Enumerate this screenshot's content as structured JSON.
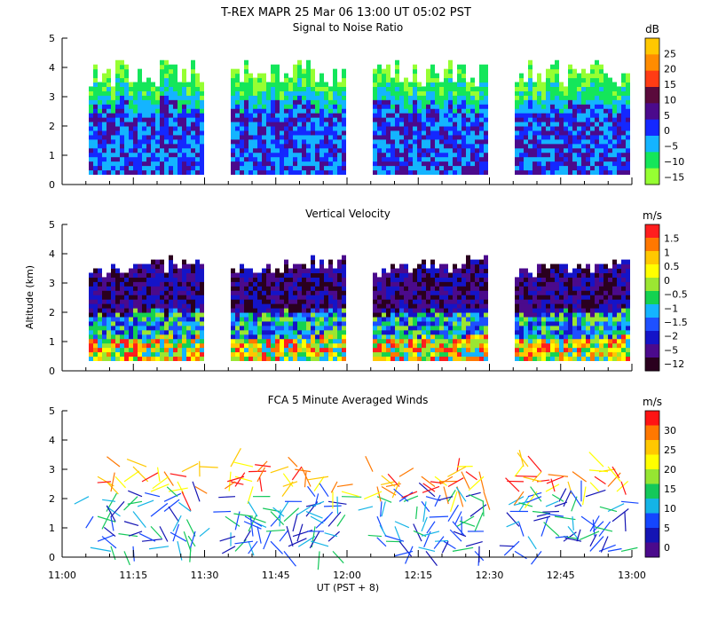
{
  "figure": {
    "title": "T-REX   MAPR 25 Mar 06   13:00 UT   05:02   PST",
    "xlabel": "UT  (PST + 8)"
  },
  "chart_data": [
    {
      "type": "heatmap",
      "title": "Signal to Noise Ratio",
      "ylabel": "",
      "ylim": [
        0,
        5
      ],
      "yticks": [
        "0",
        "1",
        "2",
        "3",
        "4",
        "5"
      ],
      "colorbar": {
        "unit": "dB",
        "labels": [
          "25",
          "20",
          "15",
          "10",
          "5",
          "0",
          "−5",
          "−10",
          "−15"
        ],
        "colors": [
          "#ffc800",
          "#ff8c00",
          "#ff3c14",
          "#5a0a3c",
          "#4b0a8c",
          "#1428ff",
          "#14b4ff",
          "#14e65a",
          "#96ff32"
        ]
      }
    },
    {
      "type": "heatmap",
      "title": "Vertical Velocity",
      "ylabel": "Altitude (km)",
      "ylim": [
        0,
        5
      ],
      "yticks": [
        "0",
        "1",
        "2",
        "3",
        "4",
        "5"
      ],
      "colorbar": {
        "unit": "m/s",
        "labels": [
          "1.5",
          "1",
          "0.5",
          "0",
          "−0.5",
          "−1",
          "−1.5",
          "−2",
          "−5",
          "−12"
        ],
        "colors": [
          "#ff1e1e",
          "#ff7800",
          "#ffc800",
          "#ffff00",
          "#9be632",
          "#14d250",
          "#14b4ff",
          "#1e50ff",
          "#1414c8",
          "#4b0a8c",
          "#2a001e"
        ]
      }
    },
    {
      "type": "scatter",
      "title": "FCA 5 Minute Averaged Winds",
      "ylabel": "",
      "ylim": [
        0,
        5
      ],
      "yticks": [
        "0",
        "1",
        "2",
        "3",
        "4",
        "5"
      ],
      "xticks": [
        "11:00",
        "11:15",
        "11:30",
        "11:45",
        "12:00",
        "12:15",
        "12:30",
        "12:45",
        "13:00"
      ],
      "colorbar": {
        "unit": "m/s",
        "labels": [
          "30",
          "25",
          "20",
          "15",
          "10",
          "5",
          "0"
        ],
        "colors": [
          "#ff1414",
          "#ff7800",
          "#ffc800",
          "#ffff00",
          "#96e632",
          "#14c85a",
          "#14b4e6",
          "#1446ff",
          "#1414b4",
          "#4b0a8c"
        ]
      },
      "sample_counts": [
        4,
        4,
        4,
        4
      ],
      "block_time_ranges": [
        [
          "11:05",
          "11:30"
        ],
        [
          "11:35",
          "12:00"
        ],
        [
          "12:05",
          "12:30"
        ],
        [
          "12:35",
          "13:00"
        ]
      ]
    }
  ]
}
